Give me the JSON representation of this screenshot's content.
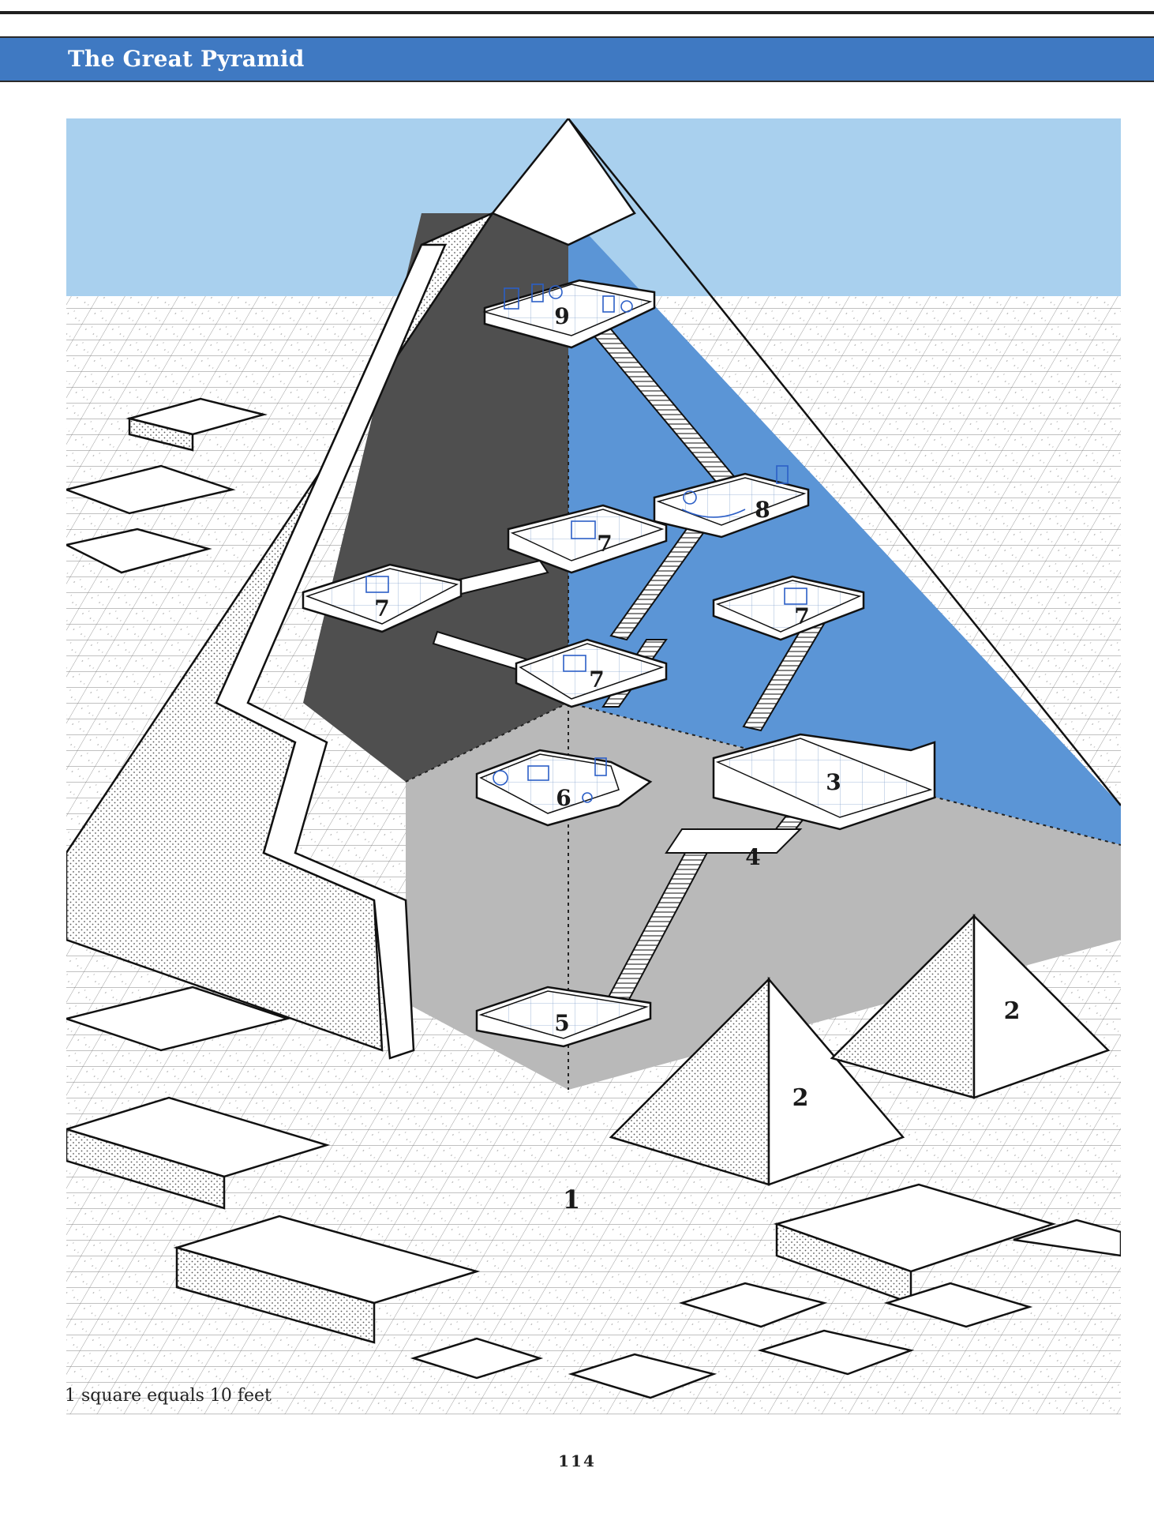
{
  "header": {
    "title": "The Great Pyramid"
  },
  "map": {
    "labels": {
      "area_1": "1",
      "area_2_left": "2",
      "area_2_right": "2",
      "area_3": "3",
      "area_4": "4",
      "area_5": "5",
      "area_6": "6",
      "area_7_upper": "7",
      "area_7_left": "7",
      "area_7_right": "7",
      "area_7_lower": "7",
      "area_8": "8",
      "area_9": "9"
    },
    "scale_note": "1 square equals 10 feet"
  },
  "footer": {
    "page_number": "114"
  },
  "colors": {
    "header_band": "#3f79c2",
    "sky": "#a9d0ee",
    "interior_blue": "#5b95d6",
    "interior_dark": "#4f4f4f",
    "interior_gray": "#b9b9b9",
    "furniture_ink": "#2c5fc7"
  }
}
